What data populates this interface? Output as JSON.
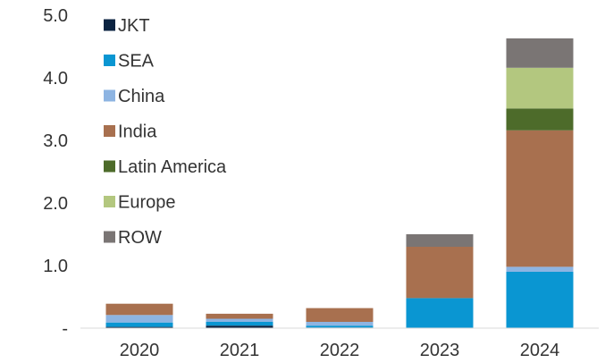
{
  "chart_data": {
    "type": "bar",
    "stacked": true,
    "categories": [
      "2020",
      "2021",
      "2022",
      "2023",
      "2024"
    ],
    "series": [
      {
        "name": "JKT",
        "color": "#0b2341",
        "values": [
          0.02,
          0.04,
          0.01,
          0.0,
          0.0
        ]
      },
      {
        "name": "SEA",
        "color": "#0a96d2",
        "values": [
          0.07,
          0.06,
          0.03,
          0.48,
          0.9
        ]
      },
      {
        "name": "China",
        "color": "#8db4e2",
        "values": [
          0.12,
          0.05,
          0.06,
          0.0,
          0.08
        ]
      },
      {
        "name": "India",
        "color": "#a8704f",
        "values": [
          0.18,
          0.08,
          0.22,
          0.82,
          2.18
        ]
      },
      {
        "name": "Latin America",
        "color": "#4d6b2a",
        "values": [
          0.0,
          0.0,
          0.0,
          0.0,
          0.35
        ]
      },
      {
        "name": "Europe",
        "color": "#b3c77f",
        "values": [
          0.0,
          0.0,
          0.0,
          0.0,
          0.65
        ]
      },
      {
        "name": "ROW",
        "color": "#7a7574",
        "values": [
          0.0,
          0.0,
          0.0,
          0.2,
          0.47
        ]
      }
    ],
    "ylim": [
      0,
      5.0
    ],
    "yticks": [
      0,
      1.0,
      2.0,
      3.0,
      4.0,
      5.0
    ],
    "ytick_labels": [
      "-",
      "1.0",
      "2.0",
      "3.0",
      "4.0",
      "5.0"
    ],
    "legend_position": "top-left",
    "grid": false,
    "title": "",
    "xlabel": "",
    "ylabel": ""
  }
}
